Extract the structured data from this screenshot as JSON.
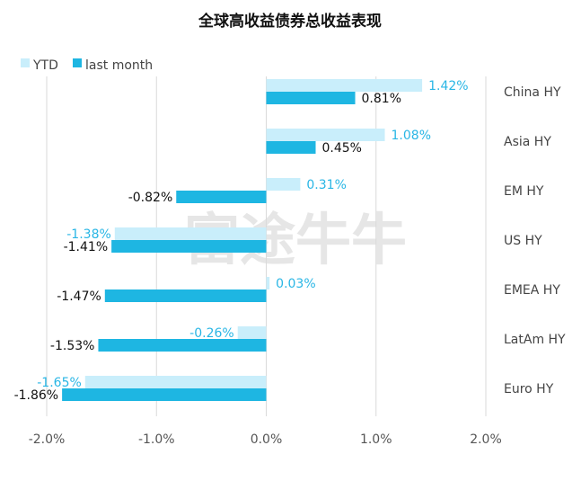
{
  "colors": {
    "ytd": "#C9EEFB",
    "last_month": "#1EB6E2",
    "ytd_label": "#29B6E5",
    "last_month_label": "#111111",
    "grid": "#DADADA"
  },
  "watermark_text": "富途牛牛",
  "chart_data": {
    "type": "bar",
    "orientation": "horizontal",
    "title": "全球高收益债券总收益表现",
    "categories": [
      "China HY",
      "Asia HY",
      "EM HY",
      "US HY",
      "EMEA HY",
      "LatAm HY",
      "Euro HY"
    ],
    "series": [
      {
        "name": "YTD",
        "values": [
          1.42,
          1.08,
          0.31,
          -1.38,
          0.03,
          -0.26,
          -1.65
        ],
        "labels": [
          "1.42%",
          "1.08%",
          "0.31%",
          "-1.38%",
          "0.03%",
          "-0.26%",
          "-1.65%"
        ]
      },
      {
        "name": "last month",
        "values": [
          0.81,
          0.45,
          -0.82,
          -1.41,
          -1.47,
          -1.53,
          -1.86
        ],
        "labels": [
          "0.81%",
          "0.45%",
          "-0.82%",
          "-1.41%",
          "-1.47%",
          "-1.53%",
          "-1.86%"
        ]
      }
    ],
    "xlim": [
      -2.0,
      2.0
    ],
    "xticks": [
      -2.0,
      -1.0,
      0.0,
      1.0,
      2.0
    ],
    "xtick_labels": [
      "-2.0%",
      "-1.0%",
      "0.0%",
      "1.0%",
      "2.0%"
    ],
    "grid": true,
    "legend_position": "top-left"
  }
}
